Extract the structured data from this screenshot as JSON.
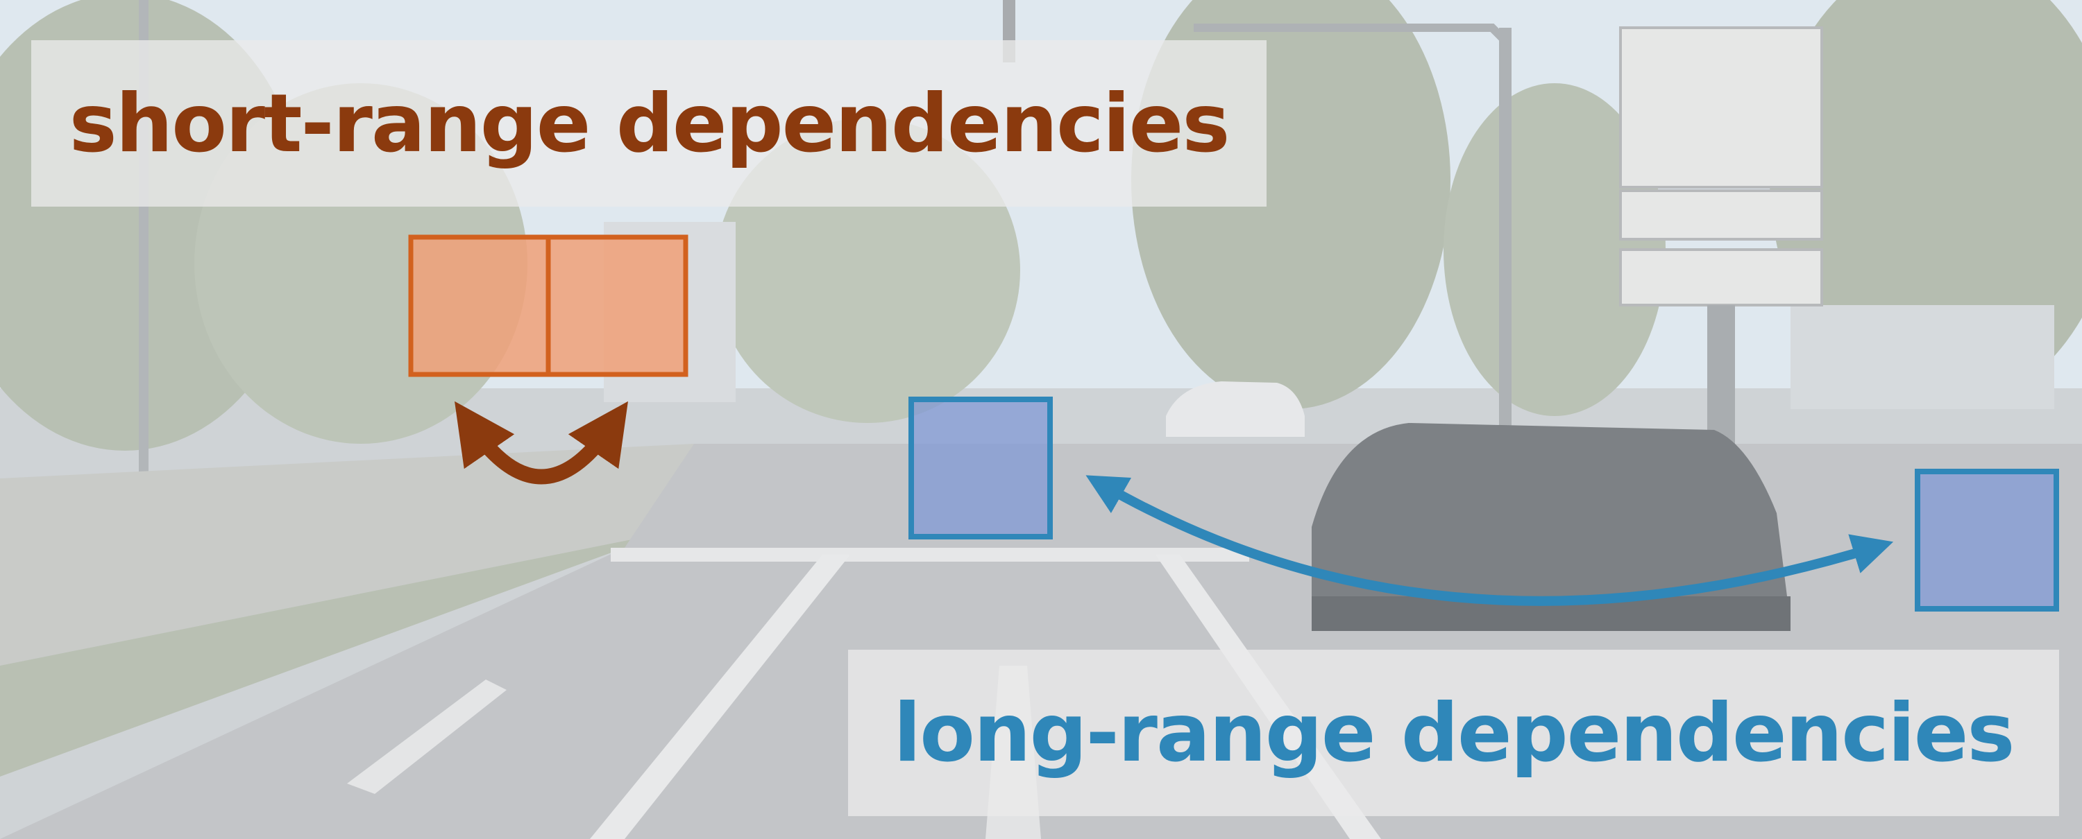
{
  "short_range": {
    "label": "short-range dependencies",
    "color": "#8b3a0e",
    "box_stroke": "#d2611e",
    "box_fill": "#f0a078"
  },
  "long_range": {
    "label": "long-range dependencies",
    "color": "#2f87b9",
    "box_stroke": "#2f87b9",
    "box_fill": "#7c96d6"
  },
  "scene": {
    "sky_color": "#dce8f2",
    "road_color": "#c4c6c9",
    "foliage_color": "#b9c2b4"
  }
}
